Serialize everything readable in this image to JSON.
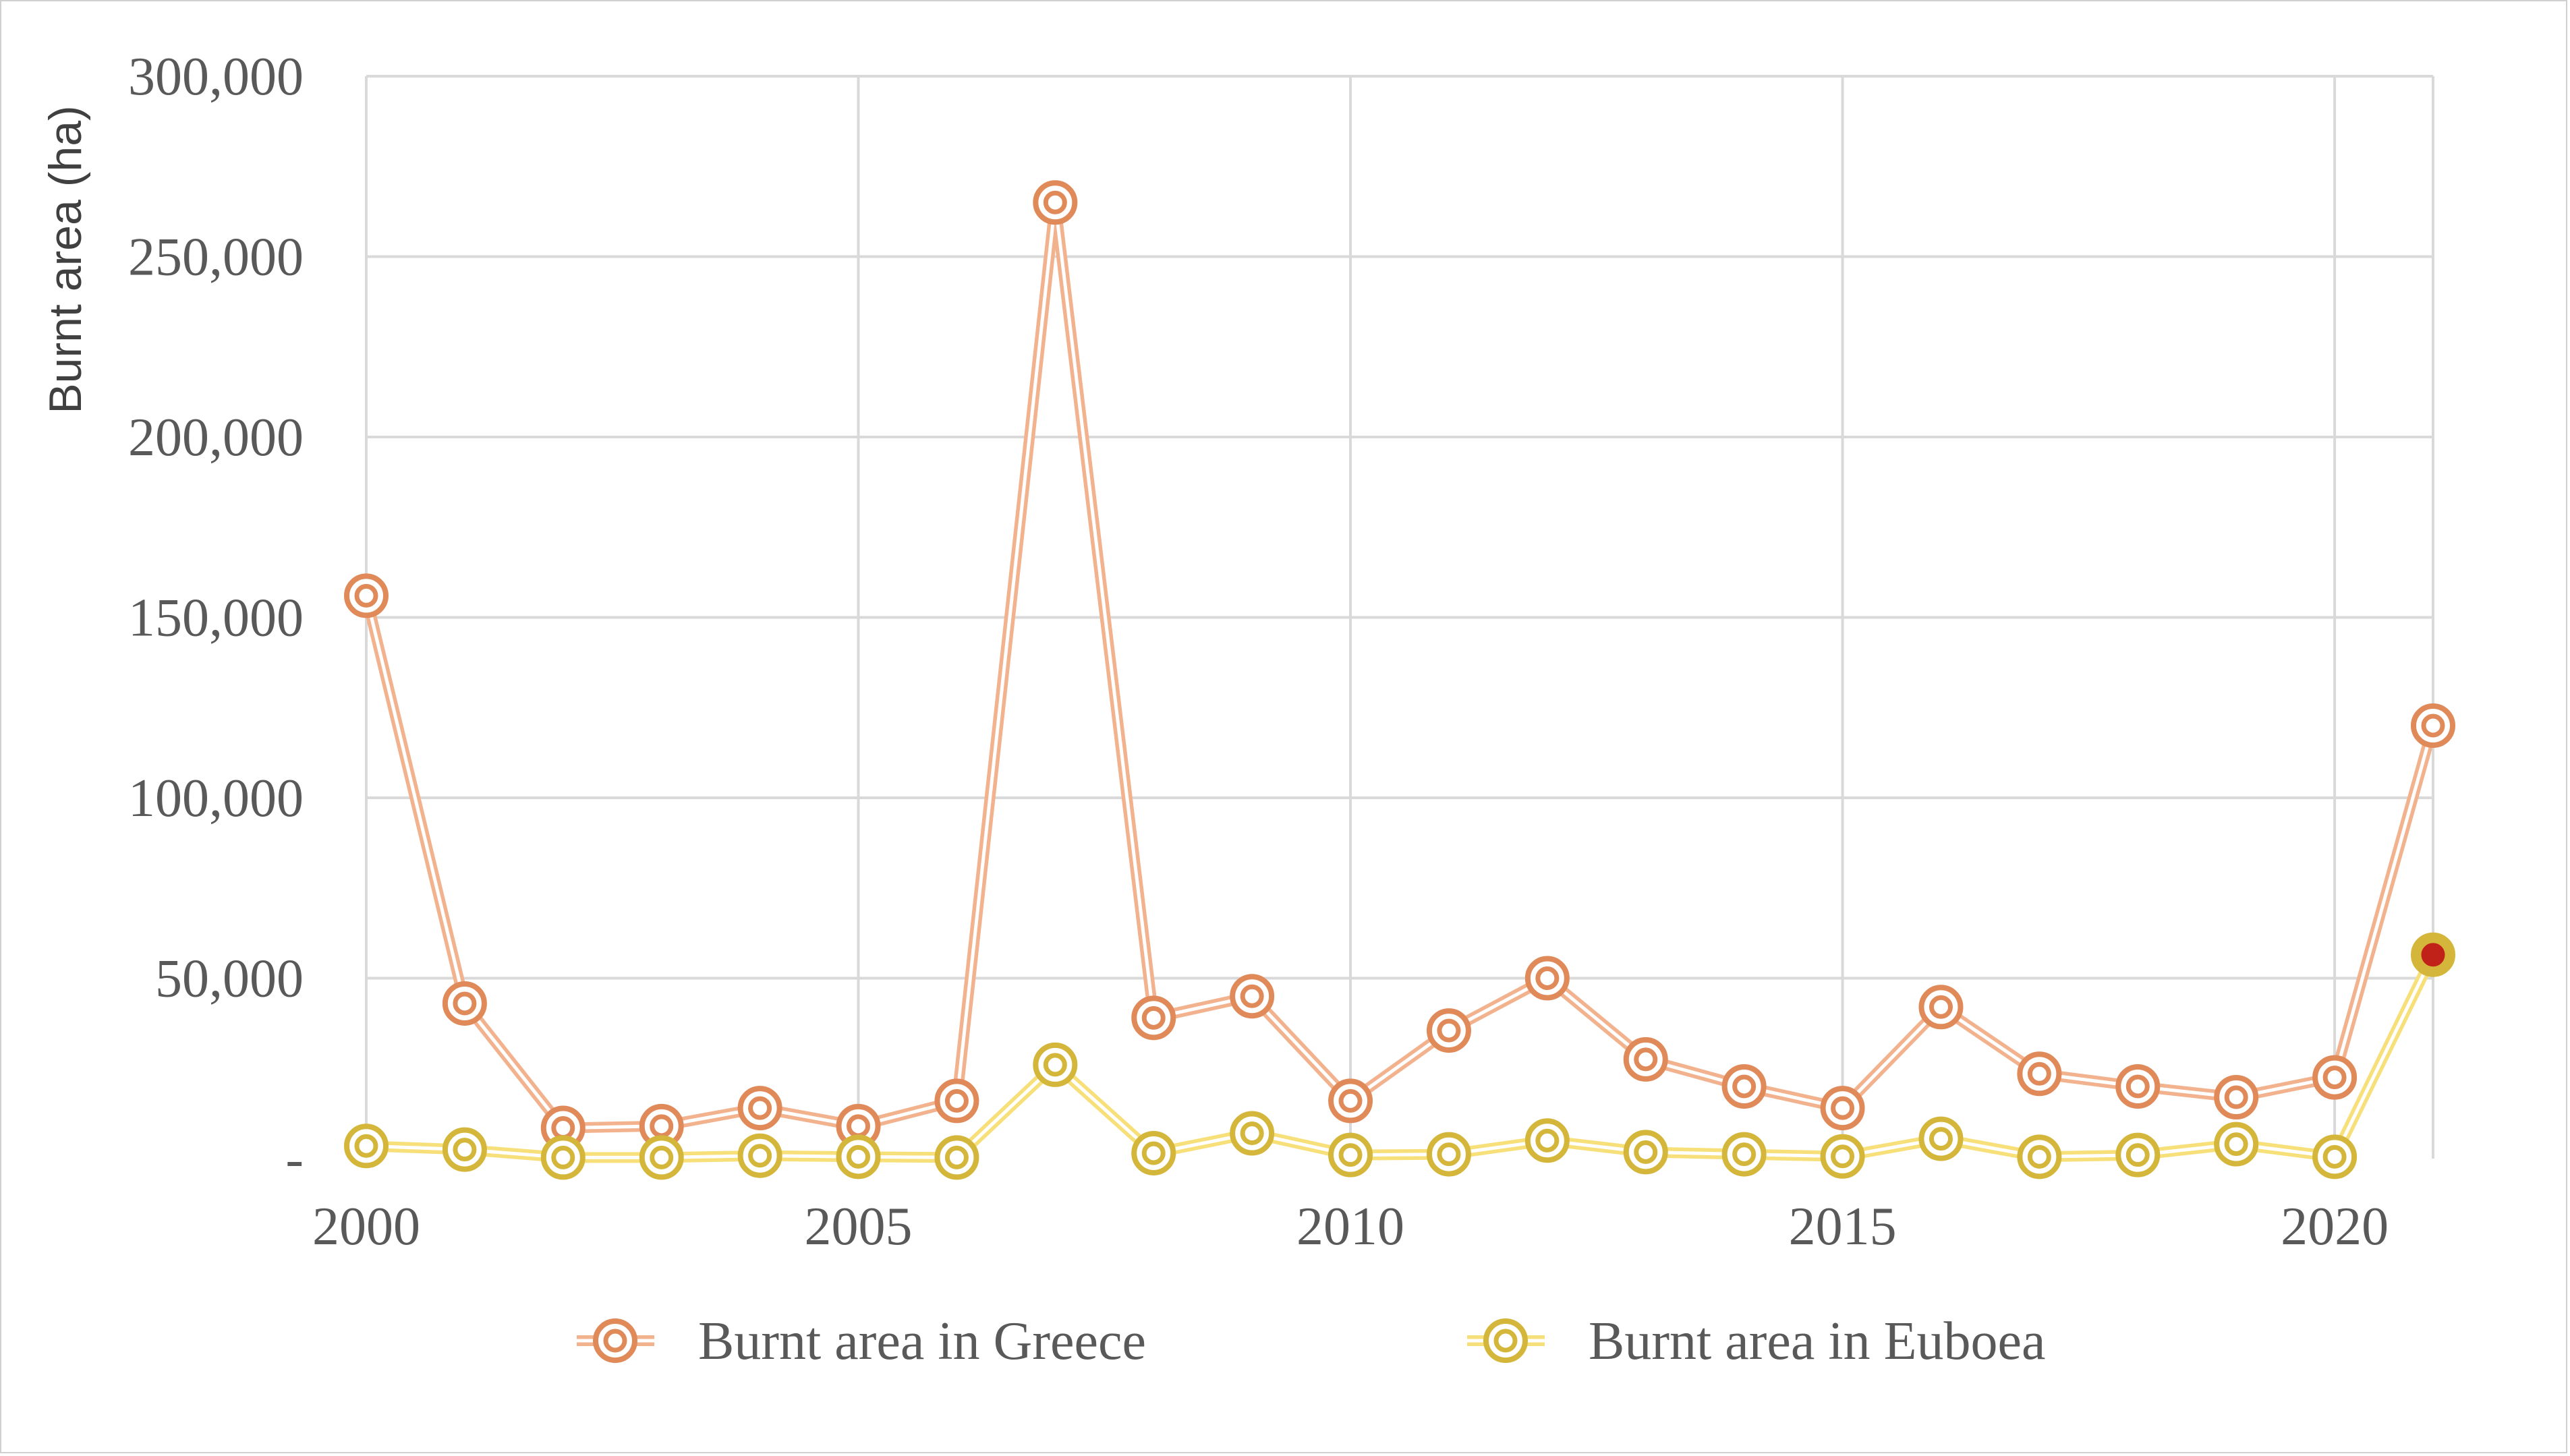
{
  "chart_data": {
    "type": "line",
    "title": "",
    "xlabel": "",
    "ylabel": "Burnt area (ha)",
    "x": [
      2000,
      2001,
      2002,
      2003,
      2004,
      2005,
      2006,
      2007,
      2008,
      2009,
      2010,
      2011,
      2012,
      2013,
      2014,
      2015,
      2016,
      2017,
      2018,
      2019,
      2020,
      2021
    ],
    "xlim": [
      2000,
      2021
    ],
    "ylim": [
      0,
      300000
    ],
    "x_ticks": [
      2000,
      2005,
      2010,
      2015,
      2020
    ],
    "y_ticks": [
      0,
      50000,
      100000,
      150000,
      200000,
      250000,
      300000
    ],
    "y_tick_labels": [
      "-",
      "50,000",
      "100,000",
      "150,000",
      "200,000",
      "250,000",
      "300,000"
    ],
    "grid": true,
    "legend_position": "bottom",
    "series": [
      {
        "name": "Burnt area in Greece",
        "color": "#e08a5a",
        "line_color": "#f3b28e",
        "values": [
          156000,
          43000,
          8500,
          9000,
          14000,
          9000,
          16000,
          265000,
          39000,
          45000,
          16000,
          35500,
          50000,
          27500,
          20000,
          14000,
          42000,
          23500,
          20000,
          17000,
          22500,
          120000
        ]
      },
      {
        "name": "Burnt area in Euboea",
        "color": "#d4b63a",
        "line_color": "#f7e07a",
        "values": [
          3500,
          2500,
          300,
          300,
          800,
          500,
          300,
          26000,
          1500,
          7000,
          1000,
          1200,
          5000,
          1800,
          1200,
          600,
          5500,
          500,
          1000,
          4000,
          500,
          56500
        ]
      }
    ],
    "highlight": {
      "series": "Burnt area in Euboea",
      "x": 2021,
      "fill": "#c0221a"
    }
  }
}
